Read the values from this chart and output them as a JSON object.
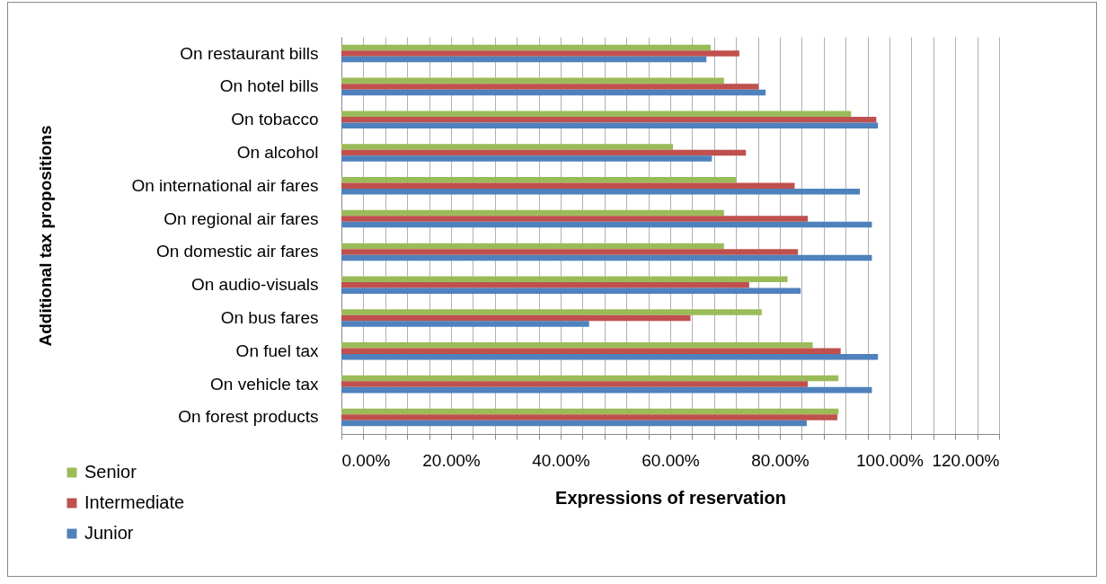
{
  "chart_data": {
    "type": "bar",
    "orientation": "horizontal",
    "xlabel": "Expressions of reservation",
    "ylabel": "Additional tax propositions",
    "categories": [
      "On restaurant bills",
      "On hotel bills",
      "On tobacco",
      "On alcohol",
      "On international air fares",
      "On regional air fares",
      "On domestic air fares",
      "On audio-visuals",
      "On bus fares",
      "On fuel tax",
      "On vehicle tax",
      "On forest products"
    ],
    "series": [
      {
        "name": "Senior",
        "color": "#9bbb59",
        "values": [
          67.4,
          69.8,
          93.0,
          60.5,
          72.0,
          69.8,
          69.8,
          81.4,
          76.7,
          86.0,
          90.7,
          90.7
        ]
      },
      {
        "name": "Intermediate",
        "color": "#c0504d",
        "values": [
          72.6,
          76.1,
          97.6,
          73.8,
          82.7,
          85.1,
          83.3,
          74.4,
          63.7,
          91.1,
          85.1,
          90.5
        ]
      },
      {
        "name": "Junior",
        "color": "#4f81bd",
        "values": [
          66.6,
          77.4,
          97.9,
          67.6,
          94.6,
          96.8,
          96.8,
          83.8,
          45.2,
          97.9,
          96.8,
          84.9
        ]
      }
    ],
    "xlim": [
      0,
      120
    ],
    "xticks": [
      {
        "value": 0,
        "label": "0.00%"
      },
      {
        "value": 4,
        "label": null
      },
      {
        "value": 8,
        "label": null
      },
      {
        "value": 12,
        "label": null
      },
      {
        "value": 16,
        "label": null
      },
      {
        "value": 20,
        "label": "20.00%"
      },
      {
        "value": 24,
        "label": null
      },
      {
        "value": 28,
        "label": null
      },
      {
        "value": 32,
        "label": null
      },
      {
        "value": 36,
        "label": null
      },
      {
        "value": 40,
        "label": "40.00%"
      },
      {
        "value": 44,
        "label": null
      },
      {
        "value": 48,
        "label": null
      },
      {
        "value": 52,
        "label": null
      },
      {
        "value": 56,
        "label": null
      },
      {
        "value": 60,
        "label": "60.00%"
      },
      {
        "value": 64,
        "label": null
      },
      {
        "value": 68,
        "label": null
      },
      {
        "value": 72,
        "label": null
      },
      {
        "value": 76,
        "label": null
      },
      {
        "value": 80,
        "label": "80.00%"
      },
      {
        "value": 84,
        "label": null
      },
      {
        "value": 88,
        "label": null
      },
      {
        "value": 92,
        "label": null
      },
      {
        "value": 96,
        "label": null
      },
      {
        "value": 100,
        "label": "100.00%"
      },
      {
        "value": 104,
        "label": null
      },
      {
        "value": 108,
        "label": null
      },
      {
        "value": 112,
        "label": null
      },
      {
        "value": 116,
        "label": null
      },
      {
        "value": 120,
        "label": "120.00%"
      }
    ],
    "grid": "x",
    "legend": "bottom left"
  }
}
